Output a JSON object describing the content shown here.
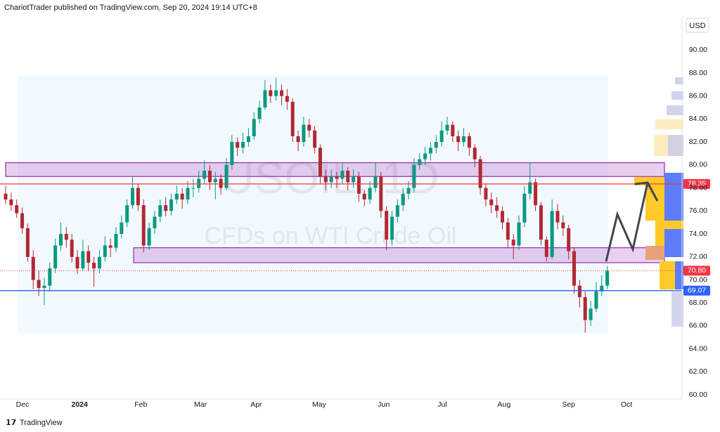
{
  "header": {
    "publisher": "ChariotTrader published on TradingView.com, Sep 20, 2024 19:14 UTC+8"
  },
  "footer": {
    "brand": "TradingView"
  },
  "chart_data": {
    "type": "candlestick",
    "currency": "USD",
    "symbol_watermark": "USOIL, 1D",
    "description_watermark": "CFDs on WTI Crude Oil",
    "up_color": "#089981",
    "down_color": "#b22833",
    "xlim": [
      -1.02,
      122.55
    ],
    "ylim": [
      59.64,
      93.01
    ],
    "xticks": [
      {
        "value": 3.06,
        "label": "Dec"
      },
      {
        "value": 13.4,
        "label": "2024"
      },
      {
        "value": 24.5,
        "label": "Feb"
      },
      {
        "value": 35.3,
        "label": "Mar"
      },
      {
        "value": 45.4,
        "label": "Apr"
      },
      {
        "value": 56.8,
        "label": "May"
      },
      {
        "value": 68.5,
        "label": "Jun"
      },
      {
        "value": 79.1,
        "label": "Jul"
      },
      {
        "value": 90.3,
        "label": "Aug"
      },
      {
        "value": 102,
        "label": "Sep"
      },
      {
        "value": 112.5,
        "label": "Oct"
      }
    ],
    "yticks": [
      {
        "value": 60,
        "label": "60.00"
      },
      {
        "value": 62,
        "label": "62.00"
      },
      {
        "value": 64,
        "label": "64.00"
      },
      {
        "value": 66,
        "label": "66.00"
      },
      {
        "value": 68,
        "label": "68.00"
      },
      {
        "value": 70,
        "label": "70.00"
      },
      {
        "value": 72,
        "label": "72.00"
      },
      {
        "value": 74,
        "label": "74.00"
      },
      {
        "value": 76,
        "label": "76.00"
      },
      {
        "value": 78,
        "label": "78.00"
      },
      {
        "value": 80,
        "label": "80.00"
      },
      {
        "value": 82,
        "label": "82.00"
      },
      {
        "value": 84,
        "label": "84.00"
      },
      {
        "value": 86,
        "label": "86.00"
      },
      {
        "value": 88,
        "label": "88.00"
      },
      {
        "value": 90,
        "label": "90.00"
      }
    ],
    "grid": false,
    "zones": [
      {
        "top": 80.2,
        "bottom": 79.0,
        "color": "#9c27b0"
      },
      {
        "top": 72.8,
        "bottom": 71.5,
        "color": "#9c27b0"
      }
    ],
    "price_lines": [
      {
        "value": 78.35,
        "color": "#f23645",
        "style": "solid"
      },
      {
        "value": 70.8,
        "value_label": "70.80",
        "color": "#f23645",
        "style": "dotted"
      },
      {
        "value": 69.07,
        "color": "#2962ff",
        "style": "solid"
      }
    ],
    "candles": [
      [
        77.5,
        78.2,
        76.6,
        77
      ],
      [
        77,
        77.6,
        76.0,
        76.5
      ],
      [
        76.5,
        77.0,
        75.4,
        75.8
      ],
      [
        75.8,
        76.3,
        74.0,
        74.5
      ],
      [
        74.5,
        74.9,
        71.6,
        72
      ],
      [
        72,
        72.6,
        69.2,
        70
      ],
      [
        70,
        70.8,
        68.6,
        69.3
      ],
      [
        69.3,
        70.2,
        67.8,
        69.5
      ],
      [
        69.5,
        71.5,
        69.0,
        71
      ],
      [
        71,
        73.6,
        70.6,
        73
      ],
      [
        73,
        75.0,
        72.5,
        74
      ],
      [
        74,
        74.6,
        72.8,
        73.5
      ],
      [
        73.5,
        74.0,
        71.5,
        72
      ],
      [
        72,
        72.6,
        70.5,
        71
      ],
      [
        71,
        73.5,
        70.8,
        72.5
      ],
      [
        72.5,
        73.0,
        70.8,
        71.5
      ],
      [
        71.5,
        72.0,
        69.4,
        71
      ],
      [
        71,
        72.6,
        70.6,
        72
      ],
      [
        72,
        73.8,
        71.6,
        73
      ],
      [
        73,
        73.6,
        72.0,
        72.8
      ],
      [
        72.8,
        74.6,
        72.4,
        74
      ],
      [
        74,
        75.6,
        73.6,
        75
      ],
      [
        75,
        77.0,
        74.6,
        76.5
      ],
      [
        76.5,
        79.0,
        76.2,
        78
      ],
      [
        78,
        78.4,
        76.0,
        76.5
      ],
      [
        76.5,
        77.0,
        72.4,
        73
      ],
      [
        73,
        75.0,
        72.6,
        74.5
      ],
      [
        74.5,
        76.0,
        74.0,
        75.5
      ],
      [
        75.5,
        77.0,
        75.0,
        76.5
      ],
      [
        76.5,
        77.2,
        75.5,
        76
      ],
      [
        76,
        77.5,
        75.6,
        77
      ],
      [
        77,
        78.2,
        76.6,
        77.5
      ],
      [
        77.5,
        78.0,
        76.2,
        77
      ],
      [
        77,
        78.6,
        76.6,
        78
      ],
      [
        78,
        78.8,
        77.2,
        78
      ],
      [
        78,
        79.5,
        77.6,
        78.8
      ],
      [
        78.8,
        80.4,
        78.4,
        79.5
      ],
      [
        79.5,
        80.0,
        77.8,
        78.5
      ],
      [
        78.5,
        79.4,
        77.0,
        78.8
      ],
      [
        78.8,
        79.2,
        77.4,
        78
      ],
      [
        78,
        80.6,
        77.8,
        80
      ],
      [
        80,
        82.6,
        79.6,
        82
      ],
      [
        82,
        82.4,
        80.8,
        81.5
      ],
      [
        81.5,
        82.8,
        81.0,
        82
      ],
      [
        82,
        83.2,
        81.6,
        82.5
      ],
      [
        82.5,
        84.6,
        82.2,
        84
      ],
      [
        84,
        85.6,
        83.6,
        85
      ],
      [
        85,
        87.4,
        84.8,
        86.5
      ],
      [
        86.5,
        87.0,
        85.4,
        86
      ],
      [
        86,
        87.6,
        85.6,
        86.5
      ],
      [
        86.5,
        87.0,
        85.2,
        86
      ],
      [
        86,
        86.6,
        84.8,
        85.5
      ],
      [
        85.5,
        85.8,
        82.0,
        82.5
      ],
      [
        82.5,
        83.0,
        81.2,
        82
      ],
      [
        82,
        84.2,
        81.6,
        83.5
      ],
      [
        83.5,
        84.0,
        82.4,
        83
      ],
      [
        83,
        83.4,
        81.0,
        81.5
      ],
      [
        81.5,
        81.8,
        78.4,
        79
      ],
      [
        79,
        79.6,
        77.8,
        78.5
      ],
      [
        78.5,
        79.6,
        78.0,
        79
      ],
      [
        79,
        79.4,
        78.0,
        78.8
      ],
      [
        78.8,
        80.2,
        78.4,
        79.5
      ],
      [
        79.5,
        79.8,
        77.8,
        78.5
      ],
      [
        78.5,
        79.6,
        78.0,
        79
      ],
      [
        79,
        79.4,
        76.8,
        77.5
      ],
      [
        77.5,
        77.8,
        76.4,
        77
      ],
      [
        77,
        78.6,
        76.6,
        78
      ],
      [
        78,
        80.2,
        77.6,
        79
      ],
      [
        79,
        79.4,
        75.4,
        76
      ],
      [
        76,
        76.4,
        72.6,
        73.5
      ],
      [
        73.5,
        76.0,
        73.0,
        75.5
      ],
      [
        75.5,
        77.0,
        75.0,
        76.5
      ],
      [
        76.5,
        78.0,
        76.0,
        77.5
      ],
      [
        77.5,
        78.6,
        77.0,
        78
      ],
      [
        78,
        80.6,
        77.6,
        80
      ],
      [
        80,
        81.0,
        79.6,
        80.5
      ],
      [
        80.5,
        81.6,
        80.0,
        81
      ],
      [
        81,
        82.0,
        80.4,
        81.5
      ],
      [
        81.5,
        82.6,
        81.0,
        82
      ],
      [
        82,
        83.8,
        81.6,
        83
      ],
      [
        83,
        84.2,
        82.6,
        83.5
      ],
      [
        83.5,
        83.8,
        82.0,
        82.5
      ],
      [
        82.5,
        83.0,
        81.2,
        82
      ],
      [
        82,
        83.2,
        81.6,
        82.5
      ],
      [
        82.5,
        82.8,
        80.8,
        81.5
      ],
      [
        81.5,
        81.8,
        79.8,
        80.5
      ],
      [
        80.5,
        80.8,
        77.4,
        78
      ],
      [
        78,
        78.4,
        76.4,
        77
      ],
      [
        77,
        77.6,
        75.8,
        76.5
      ],
      [
        76.5,
        77.2,
        75.4,
        76
      ],
      [
        76,
        76.4,
        74.4,
        75
      ],
      [
        75,
        75.4,
        72.8,
        73.5
      ],
      [
        73.5,
        74.0,
        71.8,
        73
      ],
      [
        73,
        75.6,
        72.6,
        75
      ],
      [
        75,
        78.2,
        74.6,
        77.5
      ],
      [
        77.5,
        80.2,
        77.0,
        78.5
      ],
      [
        78.5,
        78.8,
        76.0,
        76.5
      ],
      [
        76.5,
        76.8,
        73.0,
        73.5
      ],
      [
        73.5,
        73.8,
        71.6,
        72
      ],
      [
        72,
        77.0,
        71.8,
        76
      ],
      [
        76,
        76.6,
        74.4,
        75
      ],
      [
        75,
        75.6,
        73.8,
        74.5
      ],
      [
        74.5,
        74.8,
        71.8,
        72.5
      ],
      [
        72.5,
        72.8,
        68.8,
        69.5
      ],
      [
        69.5,
        70.0,
        67.6,
        68.5
      ],
      [
        68.5,
        69.0,
        65.4,
        66.5
      ],
      [
        66.5,
        68.2,
        66.0,
        67.5
      ],
      [
        67.5,
        69.8,
        67.2,
        69
      ],
      [
        69,
        70.4,
        68.6,
        69.5
      ],
      [
        69.5,
        71.2,
        69.2,
        70.8
      ]
    ]
  }
}
